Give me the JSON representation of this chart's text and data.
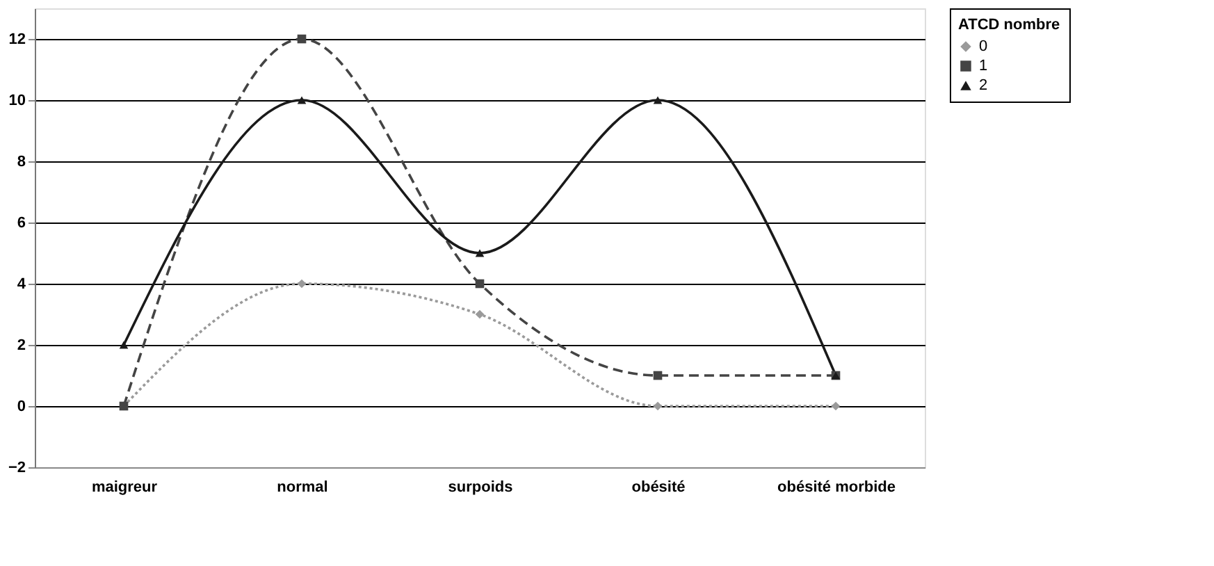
{
  "chart_data": {
    "type": "line",
    "categories": [
      "maigreur",
      "normal",
      "surpoids",
      "obésité",
      "obésité morbide"
    ],
    "series": [
      {
        "name": "0",
        "color": "#9a9a9a",
        "values": [
          0,
          4,
          3,
          0,
          0
        ],
        "marker": "diamond",
        "line_style": "dotted"
      },
      {
        "name": "1",
        "color": "#444444",
        "values": [
          0,
          12,
          4,
          1,
          1
        ],
        "marker": "square",
        "line_style": "dashed"
      },
      {
        "name": "2",
        "color": "#1a1a1a",
        "values": [
          2,
          10,
          5,
          10,
          1
        ],
        "marker": "triangle",
        "line_style": "solid"
      }
    ],
    "legend_title": "ATCD nombre",
    "legend": "right",
    "grid": "y",
    "ylim": [
      -2,
      13
    ],
    "yticks": [
      -2,
      0,
      2,
      4,
      6,
      8,
      10,
      12
    ]
  }
}
